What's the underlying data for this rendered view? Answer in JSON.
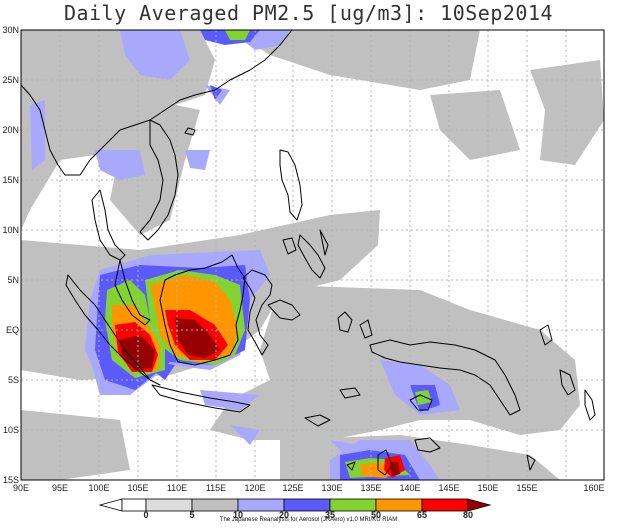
{
  "title": "Daily Averaged PM2.5 [ug/m3]: 10Sep2014",
  "credit": "The Japanese Reanalysis for Aerosol (JRAero) v1.0 MRI/KU RIAM",
  "lat_labels": [
    "30N",
    "25N",
    "20N",
    "15N",
    "10N",
    "5N",
    "EQ",
    "5S",
    "10S",
    "15S"
  ],
  "lon_labels": [
    "90E",
    "95E",
    "100E",
    "105E",
    "110E",
    "115E",
    "120E",
    "125E",
    "130E",
    "135E",
    "140E",
    "145E",
    "150E",
    "155E",
    "160E"
  ],
  "legend": {
    "thresholds": [
      "0",
      "5",
      "10",
      "20",
      "35",
      "50",
      "65",
      "80"
    ],
    "colors": [
      "#ffffff",
      "#dcdcdc",
      "#c0c0c0",
      "#a8a8ff",
      "#5a5aff",
      "#82d232",
      "#ff9600",
      "#ff0000",
      "#960000"
    ]
  },
  "map_colors": {
    "coast": "#000000",
    "grid": "#b4b4b4"
  }
}
